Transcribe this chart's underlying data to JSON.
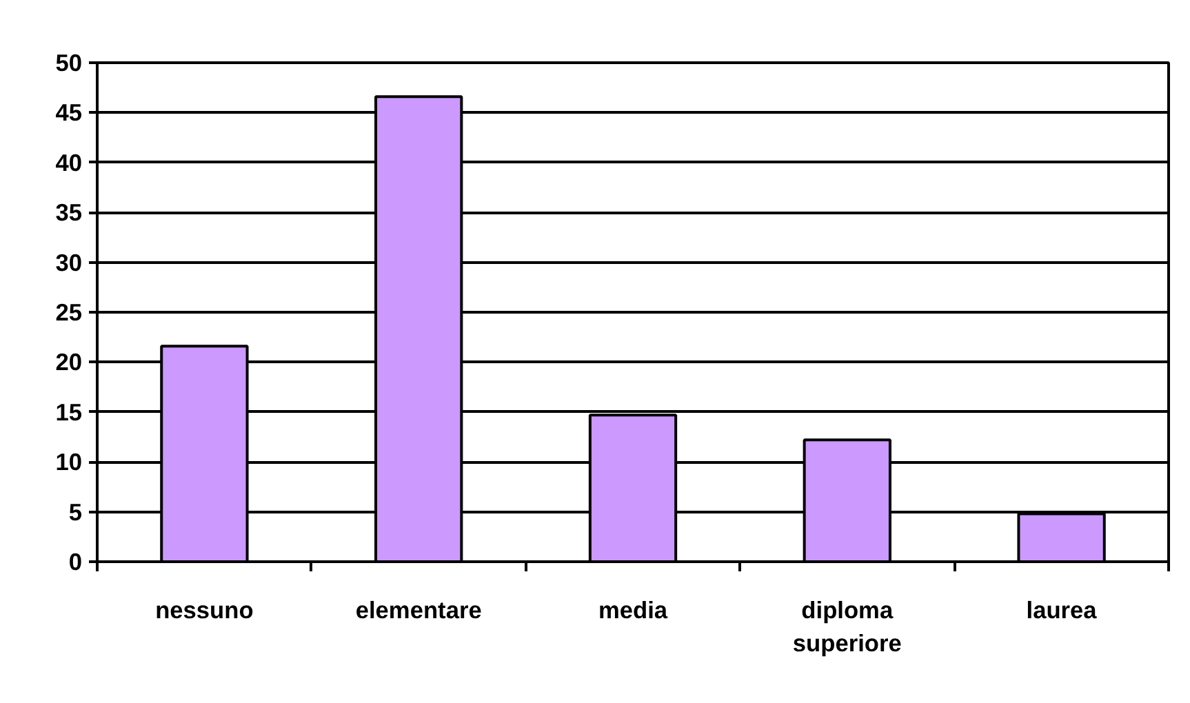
{
  "chart_data": {
    "type": "bar",
    "categories": [
      "nessuno",
      "elementare",
      "media",
      "diploma\nsuperiore",
      "laurea"
    ],
    "values": [
      21.6,
      46.6,
      14.7,
      12.2,
      4.8
    ],
    "color": "#cc99ff",
    "ylim": [
      0,
      50
    ],
    "yticks": [
      0,
      5,
      10,
      15,
      20,
      25,
      30,
      35,
      40,
      45,
      50
    ],
    "grid": "y"
  }
}
